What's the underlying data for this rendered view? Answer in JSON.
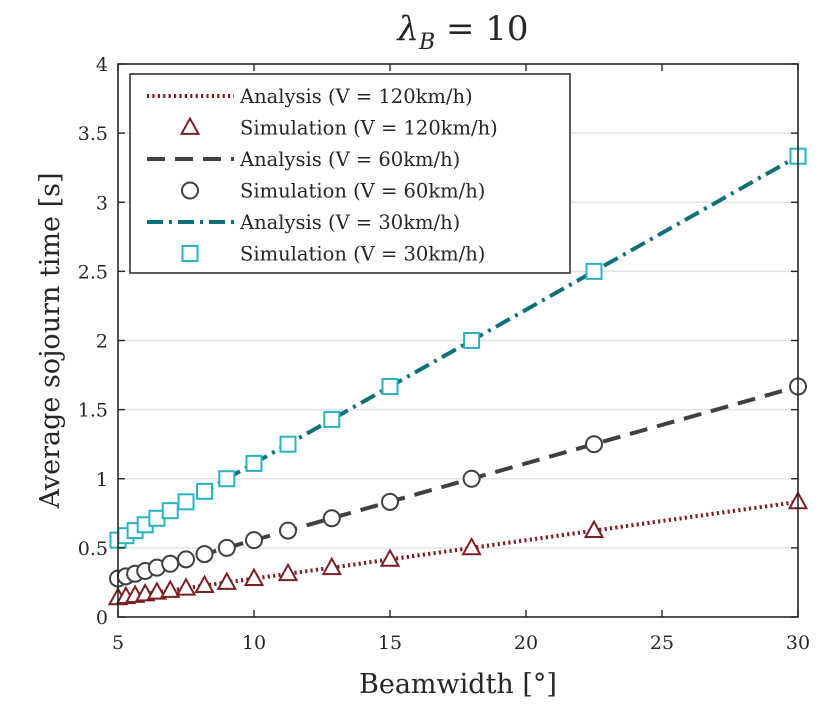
{
  "chart_data": {
    "type": "line",
    "title": "λ_B = 10",
    "title_symbol": "λ",
    "title_subscript": "B",
    "title_rest": " = 10",
    "xlabel": "Beamwidth [°]",
    "ylabel": "Average sojourn time [s]",
    "xlim": [
      5,
      30
    ],
    "ylim": [
      0,
      4
    ],
    "xticks": [
      5,
      10,
      15,
      20,
      25,
      30
    ],
    "yticks": [
      0,
      0.5,
      1,
      1.5,
      2,
      2.5,
      3,
      3.5,
      4
    ],
    "ytick_labels": [
      "0",
      "0.5",
      "1",
      "1.5",
      "2",
      "2.5",
      "3",
      "3.5",
      "4"
    ],
    "grid": "horizontal",
    "legend_position": "top-left",
    "colors": {
      "v120": "#7a1f24",
      "v60": "#404040",
      "v30": "#0f7178",
      "v30_marker": "#27b4c0",
      "axis": "#262626",
      "grid": "#e3e3e3"
    },
    "series": [
      {
        "name": "Analysis (V = 120km/h)",
        "kind": "line",
        "style": "dotted",
        "color_key": "v120",
        "x": [
          5,
          30
        ],
        "y": [
          0.139,
          0.833
        ]
      },
      {
        "name": "Simulation (V = 120km/h)",
        "kind": "markers",
        "marker": "triangle",
        "color_key": "v120",
        "x": [
          5,
          5.29,
          5.63,
          6,
          6.43,
          6.92,
          7.5,
          8.18,
          9,
          10,
          11.25,
          12.86,
          15,
          18,
          22.5,
          30
        ],
        "y": [
          0.139,
          0.147,
          0.156,
          0.167,
          0.179,
          0.192,
          0.208,
          0.227,
          0.25,
          0.278,
          0.313,
          0.357,
          0.417,
          0.5,
          0.625,
          0.833
        ]
      },
      {
        "name": "Analysis (V = 60km/h)",
        "kind": "line",
        "style": "dashed",
        "color_key": "v60",
        "x": [
          5,
          30
        ],
        "y": [
          0.278,
          1.667
        ]
      },
      {
        "name": "Simulation (V = 60km/h)",
        "kind": "markers",
        "marker": "circle",
        "color_key": "v60",
        "x": [
          5,
          5.29,
          5.63,
          6,
          6.43,
          6.92,
          7.5,
          8.18,
          9,
          10,
          11.25,
          12.86,
          15,
          18,
          22.5,
          30
        ],
        "y": [
          0.278,
          0.294,
          0.313,
          0.333,
          0.357,
          0.385,
          0.417,
          0.455,
          0.5,
          0.556,
          0.625,
          0.714,
          0.833,
          1.0,
          1.25,
          1.667
        ]
      },
      {
        "name": "Analysis (V = 30km/h)",
        "kind": "line",
        "style": "dashdot",
        "color_key": "v30",
        "x": [
          5,
          30
        ],
        "y": [
          0.556,
          3.333
        ]
      },
      {
        "name": "Simulation (V = 30km/h)",
        "kind": "markers",
        "marker": "square",
        "color_key": "v30_marker",
        "x": [
          5,
          5.29,
          5.63,
          6,
          6.43,
          6.92,
          7.5,
          8.18,
          9,
          10,
          11.25,
          12.86,
          15,
          18,
          22.5,
          30
        ],
        "y": [
          0.556,
          0.588,
          0.625,
          0.667,
          0.714,
          0.769,
          0.833,
          0.909,
          1.0,
          1.111,
          1.25,
          1.429,
          1.667,
          2.0,
          2.5,
          3.333
        ]
      }
    ]
  }
}
